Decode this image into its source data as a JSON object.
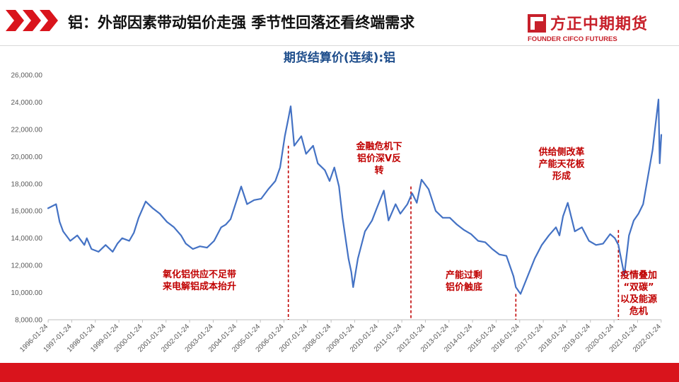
{
  "header": {
    "title": "铝：外部因素带动铝价走强 季节性回落还看终端需求",
    "brand_cn": "方正中期期货",
    "brand_en": "FOUNDER CIFCO FUTURES"
  },
  "colors": {
    "brand_red": "#c7202a",
    "line": "#4472c4",
    "annotation": "#c00000",
    "title": "#1f4e8c"
  },
  "icons": [
    "chevron-right-icon",
    "founder-logo-icon"
  ],
  "chart_data": {
    "type": "line",
    "title": "期货结算价(连续):铝",
    "xlabel": "",
    "ylabel": "",
    "ylim": [
      8000,
      26000
    ],
    "yticks": [
      "8,000.00",
      "10,000.00",
      "12,000.00",
      "14,000.00",
      "16,000.00",
      "18,000.00",
      "20,000.00",
      "22,000.00",
      "24,000.00",
      "26,000.00"
    ],
    "xlim": [
      1996.06,
      2022.07
    ],
    "xticks": [
      "1996-01-24",
      "1997-01-24",
      "1998-01-24",
      "1999-01-24",
      "2000-01-24",
      "2001-01-24",
      "2002-01-24",
      "2003-01-24",
      "2004-01-24",
      "2005-01-24",
      "2006-01-24",
      "2007-01-24",
      "2008-01-24",
      "2009-01-24",
      "2010-01-24",
      "2011-01-24",
      "2012-01-24",
      "2013-01-24",
      "2014-01-24",
      "2015-01-24",
      "2016-01-24",
      "2017-01-24",
      "2018-01-24",
      "2019-01-24",
      "2020-01-24",
      "2021-01-24",
      "2022-01-24"
    ],
    "grid": false,
    "series": [
      {
        "x": [
          1996.06,
          1996.4,
          1996.55,
          1996.7,
          1997.0,
          1997.3,
          1997.6,
          1997.7,
          1997.9,
          1998.2,
          1998.5,
          1998.8,
          1999.0,
          1999.2,
          1999.5,
          1999.7,
          1999.9,
          2000.2,
          2000.5,
          2000.8,
          2001.1,
          2001.4,
          2001.7,
          2001.9,
          2002.2,
          2002.5,
          2002.8,
          2003.1,
          2003.4,
          2003.6,
          2003.8,
          2004.1,
          2004.25,
          2004.5,
          2004.8,
          2005.1,
          2005.4,
          2005.7,
          2005.9,
          2006.1,
          2006.25,
          2006.35,
          2006.5,
          2006.8,
          2007.0,
          2007.3,
          2007.5,
          2007.8,
          2008.0,
          2008.2,
          2008.4,
          2008.55,
          2008.8,
          2008.92,
          2009.0,
          2009.2,
          2009.5,
          2009.8,
          2010.0,
          2010.3,
          2010.5,
          2010.8,
          2011.0,
          2011.3,
          2011.5,
          2011.7,
          2011.9,
          2012.2,
          2012.5,
          2012.8,
          2013.1,
          2013.4,
          2013.7,
          2014.0,
          2014.3,
          2014.6,
          2014.9,
          2015.2,
          2015.5,
          2015.8,
          2015.9,
          2016.1,
          2016.4,
          2016.7,
          2017.0,
          2017.3,
          2017.6,
          2017.75,
          2017.9,
          2018.1,
          2018.4,
          2018.7,
          2019.0,
          2019.3,
          2019.6,
          2019.9,
          2020.1,
          2020.25,
          2020.5,
          2020.7,
          2020.9,
          2021.1,
          2021.3,
          2021.5,
          2021.7,
          2021.8,
          2021.95,
          2022.0,
          2022.07
        ],
        "values": [
          16200,
          16500,
          15200,
          14500,
          13800,
          14200,
          13500,
          14000,
          13200,
          13000,
          13500,
          13000,
          13600,
          14000,
          13800,
          14400,
          15500,
          16700,
          16200,
          15800,
          15200,
          14800,
          14200,
          13600,
          13200,
          13400,
          13300,
          13800,
          14800,
          15000,
          15400,
          17000,
          17800,
          16500,
          16800,
          16900,
          17600,
          18200,
          19200,
          21500,
          22800,
          23700,
          20800,
          21500,
          20200,
          20800,
          19500,
          19000,
          18200,
          19200,
          17800,
          15500,
          12500,
          11500,
          10400,
          12500,
          14500,
          15300,
          16200,
          17500,
          15300,
          16500,
          15800,
          16500,
          17300,
          16600,
          18300,
          17600,
          16000,
          15500,
          15500,
          15000,
          14600,
          14300,
          13800,
          13700,
          13200,
          12800,
          12700,
          11200,
          10400,
          9900,
          11200,
          12500,
          13500,
          14200,
          14800,
          14200,
          15600,
          16600,
          14500,
          14800,
          13800,
          13500,
          13600,
          14300,
          14000,
          13500,
          11300,
          14200,
          15300,
          15800,
          16500,
          18500,
          20500,
          22000,
          24200,
          19500,
          21600
        ]
      }
    ],
    "annotations": [
      {
        "lines": [
          "氧化铝供应不足带",
          "来电解铝成本抬升"
        ],
        "x": 2006.25
      },
      {
        "lines": [
          "金融危机下",
          "铝价深V反",
          "转"
        ],
        "x": 2009.0
      },
      {
        "lines": [
          "产能过剩",
          "铝价触底"
        ],
        "x": 2015.9
      },
      {
        "lines": [
          "供给侧改革",
          "产能天花板",
          "形成"
        ],
        "x": 2018.1
      },
      {
        "lines": [
          "疫情叠加",
          "“双碳”",
          "以及能源",
          "危机"
        ],
        "x": 2020.25
      }
    ],
    "marker_lines": [
      {
        "x": 2006.25,
        "value": 20800
      },
      {
        "x": 2011.45,
        "value": 17800
      },
      {
        "x": 2015.9,
        "value": 9900
      },
      {
        "x": 2020.25,
        "value": 14600
      }
    ]
  }
}
